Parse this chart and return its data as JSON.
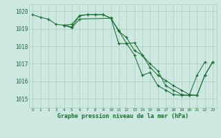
{
  "background_color": "#cce8e0",
  "grid_color": "#aaccbb",
  "line_color": "#1a6e30",
  "title": "Graphe pression niveau de la mer (hPa)",
  "xlabel_ticks": [
    0,
    1,
    2,
    3,
    4,
    5,
    6,
    7,
    8,
    9,
    10,
    11,
    12,
    13,
    14,
    15,
    16,
    17,
    18,
    19,
    20,
    21,
    22,
    23
  ],
  "ylim": [
    1014.5,
    1020.4
  ],
  "yticks": [
    1015,
    1016,
    1017,
    1018,
    1019,
    1020
  ],
  "series": [
    {
      "x": [
        0,
        1,
        2,
        3,
        4,
        5,
        6,
        7,
        8,
        9,
        10,
        11,
        12,
        13,
        14,
        15,
        16,
        17,
        18,
        19,
        20,
        21,
        22
      ],
      "y": [
        1019.8,
        1019.65,
        1019.55,
        1019.25,
        1019.2,
        1019.25,
        1019.75,
        1019.8,
        1019.8,
        1019.8,
        1019.6,
        1018.9,
        1018.15,
        1017.5,
        1016.35,
        1016.5,
        1015.75,
        1015.5,
        1015.25,
        1015.2,
        1015.2,
        1016.35,
        1017.1
      ]
    },
    {
      "x": [
        4,
        5,
        6,
        7,
        8,
        9,
        10,
        11,
        12,
        13,
        14,
        15,
        16,
        17,
        18,
        19,
        20,
        21,
        22,
        23
      ],
      "y": [
        1019.2,
        1019.1,
        1019.75,
        1019.8,
        1019.8,
        1019.8,
        1019.6,
        1018.15,
        1018.15,
        1018.2,
        1017.5,
        1016.8,
        1016.35,
        1016.05,
        1015.75,
        1015.5,
        1015.25,
        1015.2,
        1016.35,
        1017.1
      ]
    },
    {
      "x": [
        4,
        5,
        6,
        10,
        11,
        12,
        13,
        14,
        15,
        16,
        17,
        18,
        19,
        20,
        21,
        22,
        23
      ],
      "y": [
        1019.2,
        1019.05,
        1019.55,
        1019.6,
        1018.85,
        1018.5,
        1017.75,
        1017.5,
        1017.0,
        1016.6,
        1015.75,
        1015.5,
        1015.25,
        1015.2,
        1015.2,
        1016.35,
        1017.1
      ]
    }
  ]
}
